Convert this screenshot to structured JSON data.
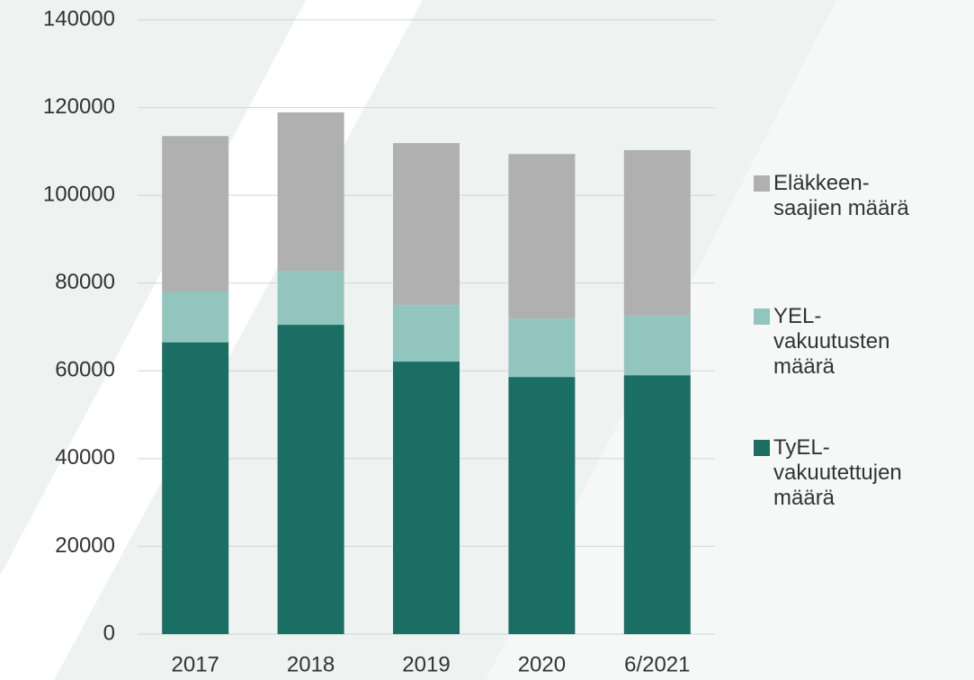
{
  "chart_data": {
    "type": "stacked_bar",
    "categories": [
      "2017",
      "2018",
      "2019",
      "2020",
      "6/2021"
    ],
    "series": [
      {
        "name": "TyEL-vakuutettujen määrä",
        "color": "#1a6e63",
        "values": [
          66500,
          70500,
          62100,
          58600,
          59000
        ]
      },
      {
        "name": "YEL-vakuutusten määrä",
        "color": "#93c5bf",
        "values": [
          11600,
          12300,
          12900,
          13300,
          13600
        ]
      },
      {
        "name": "Eläkkeen-saajien määrä",
        "color": "#b0b0b0",
        "values": [
          35400,
          36100,
          36900,
          37500,
          37700
        ]
      }
    ],
    "ylim": [
      0,
      140000
    ],
    "yticks": [
      0,
      20000,
      40000,
      60000,
      80000,
      100000,
      120000,
      140000
    ],
    "grid": true,
    "legend": "right"
  }
}
